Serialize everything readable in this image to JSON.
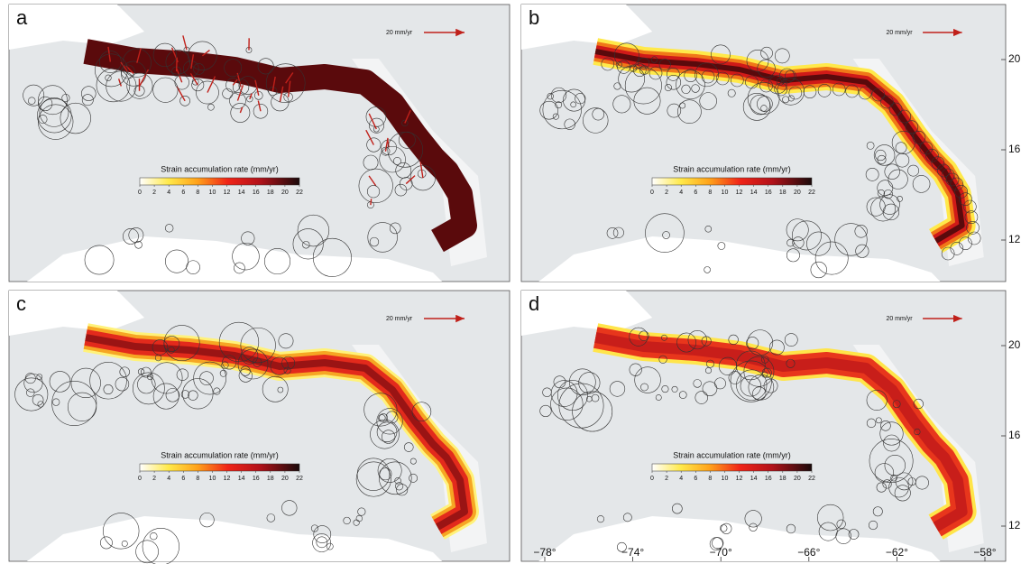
{
  "figure": {
    "panels": [
      {
        "label": "a",
        "scale_label": "20 mm/yr",
        "colorbar": {
          "title": "Strain accumulation rate (mm/yr)",
          "lim": [
            0,
            22
          ],
          "ticks": [
            0,
            2,
            4,
            6,
            8,
            10,
            12,
            14,
            16,
            18,
            20,
            22
          ]
        }
      },
      {
        "label": "b",
        "scale_label": "20 mm/yr",
        "colorbar": {
          "title": "Strain accumulation rate (mm/yr)",
          "lim": [
            0,
            22
          ],
          "ticks": [
            0,
            2,
            4,
            6,
            8,
            10,
            12,
            14,
            16,
            18,
            20,
            22
          ]
        },
        "lat_ticks": [
          {
            "value": 20,
            "label": "20°"
          },
          {
            "value": 16,
            "label": "16°"
          },
          {
            "value": 12,
            "label": "12°"
          }
        ]
      },
      {
        "label": "c",
        "scale_label": "20 mm/yr",
        "colorbar": {
          "title": "Strain accumulation rate (mm/yr)",
          "lim": [
            0,
            22
          ],
          "ticks": [
            0,
            2,
            4,
            6,
            8,
            10,
            12,
            14,
            16,
            18,
            20,
            22
          ]
        }
      },
      {
        "label": "d",
        "scale_label": "20 mm/yr",
        "colorbar": {
          "title": "Strain accumulation rate (mm/yr)",
          "lim": [
            0,
            22
          ],
          "ticks": [
            0,
            2,
            4,
            6,
            8,
            10,
            12,
            14,
            16,
            18,
            20,
            22
          ]
        },
        "lat_ticks": [
          {
            "value": 20,
            "label": "20°"
          },
          {
            "value": 16,
            "label": "16°"
          },
          {
            "value": 12,
            "label": "12°"
          }
        ],
        "lon_ticks": [
          {
            "value": -78,
            "label": "−78°"
          },
          {
            "value": -74,
            "label": "−74°"
          },
          {
            "value": -70,
            "label": "−70°"
          },
          {
            "value": -66,
            "label": "−66°"
          },
          {
            "value": -62,
            "label": "−62°"
          },
          {
            "value": -58,
            "label": "−58°"
          }
        ]
      }
    ]
  }
}
